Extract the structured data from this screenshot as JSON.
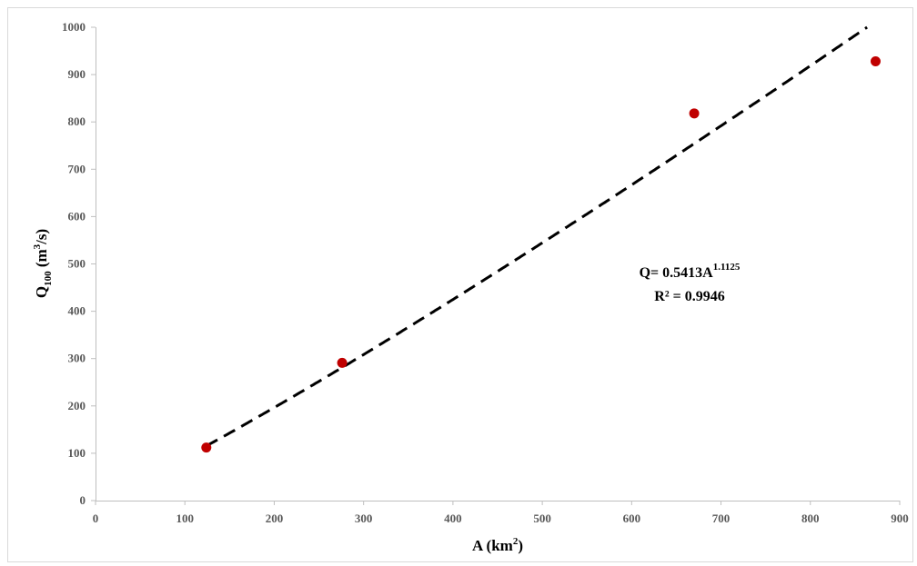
{
  "chart_data": {
    "type": "scatter",
    "xlabel": {
      "base": "A (km",
      "sup": "2",
      "tail": ")"
    },
    "ylabel": {
      "base": "Q",
      "sub": "100",
      "mid": " (m",
      "sup": "3",
      "tail": "/s)"
    },
    "xlim": [
      0,
      900
    ],
    "ylim": [
      0,
      1000
    ],
    "xticks": [
      0,
      100,
      200,
      300,
      400,
      500,
      600,
      700,
      800,
      900
    ],
    "yticks": [
      0,
      100,
      200,
      300,
      400,
      500,
      600,
      700,
      800,
      900,
      1000
    ],
    "grid": false,
    "series": [
      {
        "points": [
          {
            "x": 124,
            "y": 112
          },
          {
            "x": 276,
            "y": 291
          },
          {
            "x": 670,
            "y": 818
          },
          {
            "x": 873,
            "y": 928
          }
        ]
      }
    ],
    "trendline": {
      "kind": "power",
      "coef": 0.5413,
      "exponent": 1.1125,
      "x_start": 124,
      "style": "dashed"
    },
    "annotation": {
      "equation_prefix": "Q= 0.5413A",
      "equation_exponent": "1.1125",
      "r2": "R² = 0.9946"
    },
    "colors": {
      "point": "#c00000",
      "trendline": "#000000",
      "axis": "#bfbfbf",
      "tick_text": "#595959"
    }
  }
}
